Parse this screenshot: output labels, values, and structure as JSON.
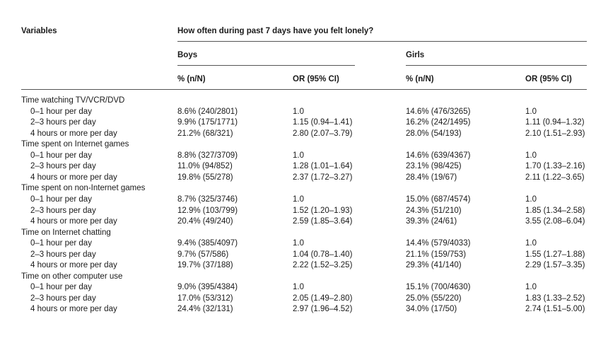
{
  "header": {
    "variables": "Variables",
    "question": "How often during past 7 days have you felt lonely?",
    "boys": "Boys",
    "girls": "Girls",
    "pct_boys": "% (n/N)",
    "or_boys": "OR (95% CI)",
    "pct_girls": "% (n/N)",
    "or_girls": "OR (95% CI)"
  },
  "groups": [
    {
      "label": "Time watching TV/VCR/DVD",
      "rows": [
        [
          "0–1 hour per day",
          "8.6% (240/2801)",
          "1.0",
          "14.6% (476/3265)",
          "1.0"
        ],
        [
          "2–3 hours per day",
          "9.9% (175/1771)",
          "1.15 (0.94–1.41)",
          "16.2% (242/1495)",
          "1.11 (0.94–1.32)"
        ],
        [
          "4 hours or more per day",
          "21.2% (68/321)",
          "2.80 (2.07–3.79)",
          "28.0% (54/193)",
          "2.10 (1.51–2.93)"
        ]
      ]
    },
    {
      "label": "Time spent on Internet games",
      "rows": [
        [
          "0–1 hour per day",
          "8.8% (327/3709)",
          "1.0",
          "14.6% (639/4367)",
          "1.0"
        ],
        [
          "2–3 hours per day",
          "11.0% (94/852)",
          "1.28 (1.01–1.64)",
          "23.1% (98/425)",
          "1.70 (1.33–2.16)"
        ],
        [
          "4 hours or more per day",
          "19.8% (55/278)",
          "2.37 (1.72–3.27)",
          "28.4% (19/67)",
          "2.11 (1.22–3.65)"
        ]
      ]
    },
    {
      "label": "Time spent on non-Internet games",
      "rows": [
        [
          "0–1 hour per day",
          "8.7% (325/3746)",
          "1.0",
          "15.0% (687/4574)",
          "1.0"
        ],
        [
          "2–3 hours per day",
          "12.9% (103/799)",
          "1.52 (1.20–1.93)",
          "24.3% (51/210)",
          "1.85 (1.34–2.58)"
        ],
        [
          "4 hours or more per day",
          "20.4% (49/240)",
          "2.59 (1.85–3.64)",
          "39.3% (24/61)",
          "3.55 (2.08–6.04)"
        ]
      ]
    },
    {
      "label": "Time on Internet chatting",
      "rows": [
        [
          "0–1 hour per day",
          "9.4% (385/4097)",
          "1.0",
          "14.4% (579/4033)",
          "1.0"
        ],
        [
          "2–3 hours per day",
          "9.7% (57/586)",
          "1.04 (0.78–1.40)",
          "21.1% (159/753)",
          "1.55 (1.27–1.88)"
        ],
        [
          "4 hours or more per day",
          "19.7% (37/188)",
          "2.22 (1.52–3.25)",
          "29.3% (41/140)",
          "2.29 (1.57–3.35)"
        ]
      ]
    },
    {
      "label": "Time on other computer use",
      "rows": [
        [
          "0–1 hour per day",
          "9.0% (395/4384)",
          "1.0",
          "15.1% (700/4630)",
          "1.0"
        ],
        [
          "2–3 hours per day",
          "17.0% (53/312)",
          "2.05 (1.49–2.80)",
          "25.0% (55/220)",
          "1.83 (1.33–2.52)"
        ],
        [
          "4 hours or more per day",
          "24.4% (32/131)",
          "2.97 (1.96–4.52)",
          "34.0% (17/50)",
          "2.74 (1.51–5.00)"
        ]
      ]
    }
  ]
}
